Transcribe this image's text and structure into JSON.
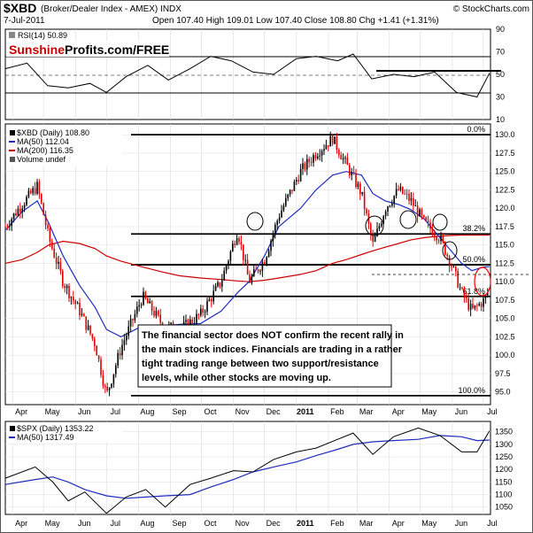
{
  "header": {
    "symbol": "$XBD",
    "name": "(Broker/Dealer Index - AMEX) INDX",
    "brand": "© StockCharts.com",
    "date": "7-Jul-2011",
    "quote": "Open 107.40  High 109.01  Low 107.40  Close 108.80  Chg +1.41 (+1.31%)"
  },
  "rsi_panel": {
    "legend": "RSI(14) 50.89",
    "logo_sunshine": "Sunshine",
    "logo_rest": "Profits.com/FREE",
    "ticks": [
      "90",
      "70",
      "50",
      "30",
      "10"
    ]
  },
  "main_panel": {
    "legend_symbol": "$XBD (Daily) 108.80",
    "legend_ma50": "MA(50) 112.04",
    "legend_ma200": "MA(200) 116.35",
    "legend_volume": "Volume undef",
    "annotation": [
      "The financial sector does NOT confirm the recent rally in",
      "the main stock indices. Financials are trading in a rather",
      "tight trading range between two support/resistance",
      "levels, while other stocks are moving up."
    ],
    "fib_labels": [
      "0.0%",
      "38.2%",
      "50.0%",
      "61.8%",
      "100.0%"
    ]
  },
  "spx_panel": {
    "legend_symbol": "$SPX (Daily) 1353.22",
    "legend_ma50": "MA(50) 1317.49"
  },
  "axis_months": [
    "Apr",
    "May",
    "Jun",
    "Jul",
    "Aug",
    "Sep",
    "Oct",
    "Nov",
    "Dec",
    "2011",
    "Feb",
    "Mar",
    "Apr",
    "May",
    "Jun",
    "Jul"
  ],
  "colors": {
    "price": "#000000",
    "ma50": "#1f2bbf",
    "ma200": "#cc0000",
    "down_candle": "#dd0000",
    "rsi_line": "#000000",
    "grid": "#cccccc",
    "brand_red": "#cc0000",
    "circle_red": "#ff0000"
  },
  "chart_data": [
    {
      "type": "line",
      "panel": "rsi",
      "title": "RSI(14) 50.89",
      "ylim": [
        10,
        90
      ],
      "yticks": [
        90,
        70,
        50,
        30,
        10
      ],
      "reference_lines": [
        70,
        30
      ],
      "x": [
        "2010-03-25",
        "2010-04-15",
        "2010-05-05",
        "2010-05-25",
        "2010-06-15",
        "2010-07-01",
        "2010-07-20",
        "2010-08-10",
        "2010-08-30",
        "2010-09-20",
        "2010-10-10",
        "2010-10-30",
        "2010-11-20",
        "2010-12-10",
        "2011-01-01",
        "2011-01-20",
        "2011-02-10",
        "2011-02-25",
        "2011-03-15",
        "2011-04-05",
        "2011-04-25",
        "2011-05-15",
        "2011-06-05",
        "2011-06-25",
        "2011-07-07"
      ],
      "series": [
        {
          "name": "RSI(14)",
          "values": [
            55,
            60,
            40,
            38,
            42,
            34,
            48,
            58,
            45,
            55,
            66,
            62,
            52,
            50,
            64,
            66,
            62,
            68,
            46,
            50,
            48,
            52,
            34,
            30,
            51
          ]
        }
      ],
      "annotation_line_y": 56
    },
    {
      "type": "line",
      "panel": "main",
      "title": "$XBD (Daily) 108.80",
      "ylim": [
        94,
        130.5
      ],
      "yticks": [
        95.0,
        97.5,
        100.0,
        102.5,
        105.0,
        107.5,
        110.0,
        112.5,
        115.0,
        117.5,
        120.0,
        122.5,
        125.0,
        127.5,
        130.0
      ],
      "x": [
        "2010-03-25",
        "2010-04-10",
        "2010-04-25",
        "2010-05-06",
        "2010-05-20",
        "2010-06-05",
        "2010-06-20",
        "2010-07-01",
        "2010-07-15",
        "2010-08-05",
        "2010-08-25",
        "2010-09-10",
        "2010-09-30",
        "2010-10-20",
        "2010-11-05",
        "2010-11-16",
        "2010-12-01",
        "2010-12-15",
        "2011-01-05",
        "2011-01-20",
        "2011-02-05",
        "2011-02-18",
        "2011-03-05",
        "2011-03-16",
        "2011-03-28",
        "2011-04-10",
        "2011-04-22",
        "2011-05-05",
        "2011-05-20",
        "2011-06-01",
        "2011-06-10",
        "2011-06-20",
        "2011-07-01",
        "2011-07-07"
      ],
      "series": [
        {
          "name": "$XBD (Daily)",
          "values": [
            117.5,
            120.5,
            123.0,
            116.0,
            110.0,
            106.0,
            101.5,
            94.5,
            101.0,
            108.0,
            104.0,
            103.5,
            105.5,
            110.0,
            117.0,
            110.0,
            113.0,
            119.0,
            125.0,
            127.5,
            129.5,
            126.0,
            122.0,
            115.0,
            120.0,
            122.5,
            121.0,
            118.0,
            116.0,
            112.0,
            108.5,
            106.0,
            107.4,
            108.8
          ]
        },
        {
          "name": "MA(50)",
          "values": [
            117.0,
            119.5,
            121.0,
            118.0,
            113.5,
            109.5,
            106.5,
            103.5,
            102.5,
            104.0,
            104.0,
            104.2,
            104.3,
            106.0,
            108.5,
            110.0,
            113.5,
            117.5,
            120.0,
            122.5,
            124.5,
            125.0,
            124.5,
            122.0,
            121.0,
            120.5,
            119.8,
            118.5,
            116.0,
            114.0,
            112.5,
            111.5,
            112.0,
            112.04
          ]
        },
        {
          "name": "MA(200)",
          "values": [
            112.5,
            113.0,
            114.0,
            115.0,
            115.5,
            115.2,
            114.5,
            113.5,
            112.8,
            112.0,
            111.3,
            110.8,
            110.5,
            110.3,
            110.1,
            110.0,
            110.2,
            110.5,
            111.0,
            111.5,
            112.5,
            113.0,
            113.7,
            114.2,
            114.7,
            115.2,
            115.7,
            116.0,
            116.2,
            116.3,
            116.35,
            116.35,
            116.35,
            116.35
          ]
        }
      ],
      "fibonacci_levels": [
        {
          "label": "0.0%",
          "value": 130.0
        },
        {
          "label": "38.2%",
          "value": 116.5
        },
        {
          "label": "50.0%",
          "value": 112.3
        },
        {
          "label": "61.8%",
          "value": 108.0
        },
        {
          "label": "100.0%",
          "value": 94.5
        }
      ],
      "dashed_line": 109.7
    },
    {
      "type": "line",
      "panel": "spx",
      "title": "$SPX (Daily) 1353.22",
      "ylim": [
        1035,
        1370
      ],
      "yticks": [
        1050,
        1100,
        1150,
        1200,
        1250,
        1300,
        1350
      ],
      "x": [
        "2010-03-25",
        "2010-04-23",
        "2010-05-10",
        "2010-05-25",
        "2010-06-10",
        "2010-07-01",
        "2010-07-20",
        "2010-08-08",
        "2010-08-27",
        "2010-09-20",
        "2010-10-10",
        "2010-11-01",
        "2010-11-20",
        "2010-12-10",
        "2011-01-01",
        "2011-01-20",
        "2011-02-10",
        "2011-02-25",
        "2011-03-16",
        "2011-04-05",
        "2011-04-29",
        "2011-05-20",
        "2011-06-10",
        "2011-06-25",
        "2011-07-07"
      ],
      "series": [
        {
          "name": "$SPX (Daily)",
          "values": [
            1165,
            1210,
            1150,
            1075,
            1110,
            1025,
            1090,
            1120,
            1050,
            1140,
            1165,
            1195,
            1190,
            1240,
            1270,
            1285,
            1320,
            1345,
            1260,
            1330,
            1365,
            1335,
            1270,
            1270,
            1353
          ]
        },
        {
          "name": "MA(50)",
          "values": [
            1140,
            1160,
            1170,
            1150,
            1120,
            1095,
            1085,
            1090,
            1095,
            1100,
            1130,
            1160,
            1190,
            1210,
            1230,
            1255,
            1280,
            1300,
            1310,
            1315,
            1320,
            1335,
            1330,
            1315,
            1317
          ]
        }
      ]
    }
  ]
}
